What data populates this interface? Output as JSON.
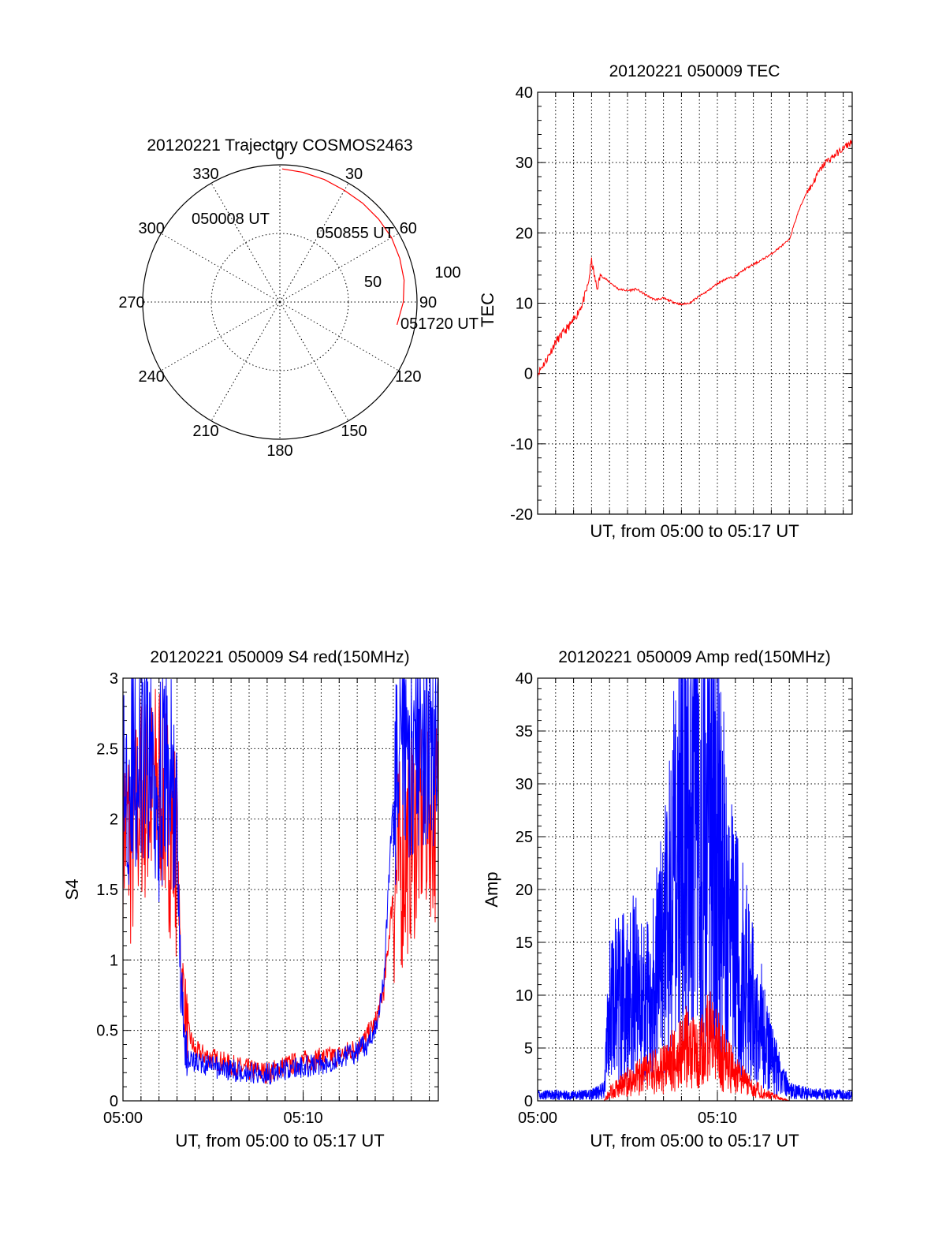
{
  "colors": {
    "red": "#ff0000",
    "blue": "#0000ff",
    "black": "#000000"
  },
  "chart_data": [
    {
      "type": "polar",
      "title": "20120221 Trajectory COSMOS2463",
      "angle_labels": [
        "0",
        "30",
        "60",
        "90",
        "120",
        "150",
        "180",
        "210",
        "240",
        "270",
        "300",
        "330"
      ],
      "radius_labels": [
        "50",
        "100"
      ],
      "zenith_range": [
        0,
        100
      ],
      "trajectory": {
        "color": "red",
        "points": [
          {
            "azimuth": 1,
            "zenith": 97
          },
          {
            "azimuth": 10,
            "zenith": 96
          },
          {
            "azimuth": 20,
            "zenith": 95
          },
          {
            "azimuth": 30,
            "zenith": 94
          },
          {
            "azimuth": 40,
            "zenith": 94
          },
          {
            "azimuth": 50,
            "zenith": 94
          },
          {
            "azimuth": 60,
            "zenith": 94
          },
          {
            "azimuth": 70,
            "zenith": 93
          },
          {
            "azimuth": 80,
            "zenith": 92
          },
          {
            "azimuth": 90,
            "zenith": 90
          },
          {
            "azimuth": 101,
            "zenith": 87
          }
        ]
      },
      "annotations": [
        "050008 UT",
        "050855 UT",
        "051720 UT"
      ]
    },
    {
      "type": "line",
      "title": "20120221 050009 TEC",
      "xlabel": "UT, from 05:00 to 05:17 UT",
      "ylabel": "TEC",
      "xlim": [
        0,
        17.5
      ],
      "ylim": [
        -20,
        40
      ],
      "yticks": [
        "-20",
        "-10",
        "0",
        "10",
        "20",
        "30",
        "40"
      ],
      "grid": true,
      "series": [
        {
          "color": "red",
          "x": [
            0,
            0.5,
            1,
            1.5,
            2,
            2.5,
            2.8,
            3.0,
            3.3,
            3.5,
            4,
            4.5,
            5,
            5.5,
            6,
            6.5,
            7,
            7.5,
            8,
            8.5,
            9,
            9.5,
            10,
            10.5,
            11,
            11.5,
            12,
            12.5,
            13,
            13.5,
            14,
            14.5,
            15,
            15.2,
            15.6,
            16,
            16.5,
            17,
            17.5
          ],
          "y": [
            0,
            2,
            4.5,
            6,
            7.5,
            10,
            12.5,
            16,
            12,
            14,
            13,
            12,
            11.8,
            12,
            11.2,
            10.5,
            10.7,
            10.2,
            9.8,
            10.1,
            11,
            11.8,
            12.8,
            13.5,
            13.8,
            14.8,
            15.5,
            16.2,
            17,
            18,
            19,
            23,
            26,
            26.5,
            28.5,
            30,
            31,
            32,
            33
          ]
        }
      ]
    },
    {
      "type": "line",
      "title": "20120221 050009 S4 red(150MHz)",
      "xlabel": "UT, from 05:00 to 05:17 UT",
      "ylabel": "S4",
      "xlim": [
        0,
        17.5
      ],
      "ylim": [
        0,
        3
      ],
      "xticks": [
        "05:00",
        "05:10"
      ],
      "yticks": [
        "0",
        "0.5",
        "1",
        "1.5",
        "2",
        "2.5",
        "3"
      ],
      "grid": true,
      "series": [
        {
          "color": "red",
          "x": [
            0,
            0.5,
            1,
            1.5,
            2,
            2.5,
            3.0,
            3.2,
            3.6,
            4,
            5,
            6,
            7,
            8,
            8.5,
            9,
            10,
            11,
            12,
            13,
            13.5,
            14,
            14.5,
            15,
            16,
            17,
            17.5
          ],
          "y": [
            2.0,
            1.8,
            2.2,
            2.1,
            2.3,
            2.0,
            1.8,
            1.0,
            0.5,
            0.35,
            0.3,
            0.25,
            0.22,
            0.2,
            0.22,
            0.25,
            0.28,
            0.3,
            0.32,
            0.38,
            0.45,
            0.55,
            0.8,
            1.5,
            1.9,
            2.1,
            2.0
          ]
        },
        {
          "color": "blue",
          "x": [
            0,
            0.5,
            1,
            1.5,
            2,
            2.5,
            3.0,
            3.2,
            3.6,
            4,
            5,
            6,
            7,
            8,
            8.5,
            9,
            10,
            11,
            12,
            13,
            13.5,
            14,
            14.5,
            15,
            16,
            17,
            17.5
          ],
          "y": [
            2.2,
            2.4,
            2.3,
            2.5,
            2.2,
            2.4,
            2.0,
            0.8,
            0.3,
            0.28,
            0.24,
            0.22,
            0.2,
            0.2,
            0.2,
            0.22,
            0.24,
            0.26,
            0.3,
            0.35,
            0.4,
            0.5,
            0.9,
            2.2,
            2.5,
            2.6,
            2.4
          ]
        }
      ]
    },
    {
      "type": "line",
      "title": "20120221 050009 Amp red(150MHz)",
      "xlabel": "UT, from 05:00 to 05:17 UT",
      "ylabel": "Amp",
      "xlim": [
        0,
        17.5
      ],
      "ylim": [
        0,
        40
      ],
      "xticks": [
        "05:00",
        "05:10"
      ],
      "yticks": [
        "0",
        "5",
        "10",
        "15",
        "20",
        "25",
        "30",
        "35",
        "40"
      ],
      "grid": true,
      "series": [
        {
          "color": "blue",
          "x": [
            0,
            1,
            2,
            3,
            3.7,
            4,
            5,
            5.5,
            6,
            6.5,
            7,
            7.5,
            8,
            8.5,
            9,
            9.5,
            10,
            10.5,
            11,
            11.5,
            12,
            12.5,
            13,
            14,
            15,
            16,
            17,
            17.5
          ],
          "y": [
            0.5,
            0.6,
            0.5,
            0.6,
            1.0,
            9,
            10,
            11,
            9,
            12,
            14,
            20,
            27,
            34,
            22,
            30,
            25,
            18,
            14,
            12,
            9,
            7,
            4,
            1.0,
            0.7,
            0.6,
            0.6,
            0.5
          ]
        },
        {
          "color": "red",
          "x": [
            3.7,
            4,
            5,
            6,
            7,
            7.5,
            8,
            8.5,
            9,
            9.5,
            10,
            10.5,
            11,
            12,
            13,
            14
          ],
          "y": [
            0,
            0.8,
            1.8,
            2.5,
            3,
            3.8,
            4.5,
            5.5,
            4.2,
            6,
            5,
            3.5,
            2.5,
            1.2,
            0.5,
            0
          ]
        }
      ]
    }
  ]
}
